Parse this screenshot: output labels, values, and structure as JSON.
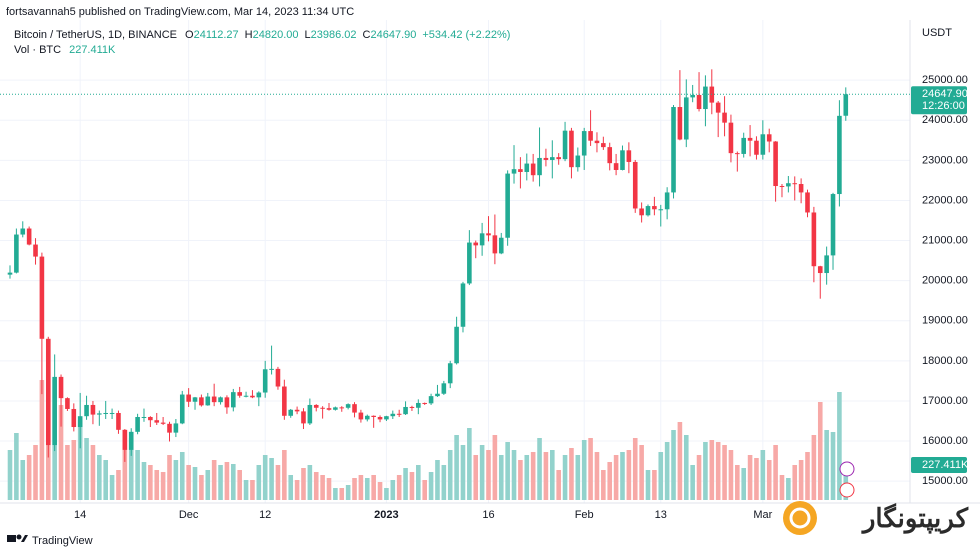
{
  "chart_data": {
    "type": "candlestick",
    "attribution": "fortsavannah5 published on TradingView.com, Mar 14, 2023 11:34 UTC",
    "currency": "USDT",
    "legend_fields": [
      "O",
      "H",
      "L",
      "C"
    ],
    "legend_values": [
      "24112.27",
      "24820.00",
      "23986.02",
      "24647.90"
    ],
    "change": "+534.42 (+2.22%)",
    "countdown": "12:26:00",
    "footer": "TradingView",
    "watermark": "کریپتونگار",
    "up_color": "#22ab94",
    "down_color": "#f23645",
    "volume_up_color": "#92d2cc",
    "volume_down_color": "#f7a9a7",
    "grid": true,
    "ylim": [
      14530,
      26500
    ],
    "yticks": [
      {
        "value": 15000,
        "label": "15000.00"
      },
      {
        "value": 16000,
        "label": "16000.00"
      },
      {
        "value": 17000,
        "label": "17000.00"
      },
      {
        "value": 18000,
        "label": "18000.00"
      },
      {
        "value": 19000,
        "label": "19000.00"
      },
      {
        "value": 20000,
        "label": "20000.00"
      },
      {
        "value": 21000,
        "label": "21000.00"
      },
      {
        "value": 22000,
        "label": "22000.00"
      },
      {
        "value": 23000,
        "label": "23000.00"
      },
      {
        "value": 24000,
        "label": "24000.00"
      },
      {
        "value": 25000,
        "label": "25000.00"
      }
    ],
    "categories": [
      null,
      null,
      null,
      null,
      null,
      null,
      null,
      null,
      null,
      null,
      null,
      "14",
      null,
      null,
      null,
      null,
      null,
      null,
      null,
      null,
      null,
      null,
      null,
      null,
      null,
      null,
      null,
      null,
      "Dec",
      null,
      null,
      null,
      null,
      null,
      null,
      null,
      null,
      null,
      null,
      null,
      "12",
      null,
      null,
      null,
      null,
      null,
      null,
      null,
      null,
      null,
      null,
      null,
      null,
      null,
      null,
      null,
      null,
      null,
      null,
      "2023",
      null,
      null,
      null,
      null,
      null,
      null,
      null,
      null,
      null,
      null,
      null,
      null,
      null,
      null,
      null,
      "16",
      null,
      null,
      null,
      null,
      null,
      null,
      null,
      null,
      null,
      null,
      null,
      null,
      null,
      null,
      "Feb",
      null,
      null,
      null,
      null,
      null,
      null,
      null,
      null,
      null,
      null,
      null,
      "13",
      null,
      null,
      null,
      null,
      null,
      null,
      null,
      null,
      null,
      null,
      null,
      null,
      null,
      null,
      null,
      "Mar",
      null,
      null,
      null,
      null,
      null,
      null,
      null,
      null,
      null,
      null,
      null,
      null,
      null
    ],
    "series": [
      {
        "name": "Bitcoin / TetherUS, 1D, BINANCE",
        "open": [
          20150,
          20200,
          21150,
          21300,
          20900,
          20600,
          18550,
          15900,
          17600,
          17070,
          16800,
          16350,
          16620,
          16900,
          16660,
          16690,
          16700,
          16700,
          16280,
          15780,
          16230,
          16600,
          16600,
          16520,
          16460,
          16430,
          16210,
          16440,
          17160,
          16980,
          17090,
          16890,
          17110,
          16970,
          17090,
          16840,
          17220,
          17130,
          17130,
          17090,
          17210,
          17790,
          17800,
          17360,
          16630,
          16780,
          16740,
          16440,
          16900,
          16830,
          16820,
          16780,
          16840,
          16830,
          16920,
          16710,
          16540,
          16630,
          16600,
          16540,
          16620,
          16680,
          16670,
          16850,
          16830,
          16950,
          16940,
          17120,
          17180,
          17440,
          17940,
          18850,
          19930,
          20950,
          20880,
          21180,
          21130,
          20680,
          21070,
          22670,
          22780,
          22710,
          22920,
          22630,
          23060,
          23010,
          23080,
          23030,
          23740,
          22830,
          23120,
          23730,
          23490,
          23430,
          23330,
          22930,
          22760,
          23250,
          22960,
          21800,
          21630,
          21860,
          21780,
          21780,
          22200,
          24330,
          23520,
          24570,
          24630,
          24280,
          24840,
          24440,
          24190,
          23940,
          23180,
          23160,
          23560,
          23490,
          23140,
          23650,
          23470,
          22360,
          22350,
          22430,
          22410,
          22200,
          21700,
          20360,
          20190,
          20630,
          22160,
          24112.27
        ],
        "high": [
          20380,
          21300,
          21480,
          21350,
          21060,
          20700,
          18600,
          18160,
          17660,
          17090,
          16940,
          17200,
          17130,
          17000,
          16760,
          17000,
          16810,
          16760,
          16300,
          16320,
          16680,
          16810,
          16620,
          16700,
          16600,
          16480,
          16550,
          17250,
          17320,
          17100,
          17160,
          17200,
          17430,
          17110,
          17140,
          17300,
          17350,
          17230,
          17270,
          17240,
          18000,
          18380,
          17850,
          17530,
          16800,
          16860,
          16820,
          17060,
          16920,
          16870,
          16950,
          16860,
          16870,
          16940,
          16970,
          16780,
          16660,
          16640,
          16640,
          16630,
          16760,
          16780,
          16990,
          16880,
          17040,
          16960,
          17180,
          17400,
          17500,
          18000,
          19100,
          19970,
          21260,
          21000,
          21440,
          21610,
          21650,
          21190,
          22750,
          23380,
          23080,
          23170,
          23160,
          23820,
          23290,
          23500,
          23180,
          23960,
          23810,
          23320,
          23810,
          24250,
          23700,
          23590,
          23440,
          23160,
          23370,
          23450,
          23010,
          21950,
          21900,
          22090,
          21890,
          22330,
          24380,
          25250,
          25020,
          24880,
          25200,
          25120,
          25270,
          24480,
          24600,
          24140,
          23220,
          23690,
          23880,
          23600,
          24000,
          23790,
          23480,
          22410,
          22610,
          22600,
          22550,
          22270,
          21840,
          20370,
          20850,
          22190,
          24500,
          24820
        ],
        "low": [
          20050,
          20180,
          21080,
          20880,
          20400,
          17170,
          15590,
          15750,
          16360,
          16750,
          16240,
          15820,
          16530,
          16420,
          16380,
          16550,
          16550,
          16180,
          15480,
          15630,
          16170,
          16480,
          16350,
          16400,
          16400,
          15990,
          16100,
          16420,
          16850,
          16780,
          16860,
          16880,
          16870,
          16910,
          16680,
          16740,
          17080,
          17090,
          17070,
          16870,
          17080,
          17660,
          17280,
          16530,
          16580,
          16670,
          16300,
          16400,
          16740,
          16560,
          16760,
          16760,
          16730,
          16790,
          16590,
          16460,
          16490,
          16330,
          16470,
          16500,
          16550,
          16600,
          16650,
          16750,
          16670,
          16900,
          16900,
          17100,
          17150,
          17320,
          17910,
          18710,
          19890,
          20560,
          20620,
          20980,
          20410,
          20660,
          20870,
          22420,
          22300,
          22500,
          22470,
          22350,
          22850,
          22550,
          22890,
          22980,
          22550,
          22720,
          22760,
          23360,
          23200,
          23260,
          22750,
          22630,
          22750,
          22680,
          21690,
          21450,
          21600,
          21630,
          21350,
          21530,
          22050,
          23500,
          23330,
          24450,
          24220,
          23850,
          24150,
          23580,
          23600,
          22950,
          22720,
          23070,
          23100,
          23020,
          23020,
          23200,
          21970,
          22080,
          22200,
          22000,
          21930,
          21580,
          19960,
          19550,
          19900,
          20270,
          21850,
          23986.02
        ],
        "close": [
          20200,
          21150,
          21300,
          20900,
          20600,
          18550,
          15900,
          17600,
          17070,
          16800,
          16350,
          16620,
          16900,
          16660,
          16690,
          16700,
          16700,
          16280,
          15780,
          16230,
          16600,
          16600,
          16520,
          16460,
          16430,
          16210,
          16440,
          17160,
          16980,
          17090,
          16890,
          17110,
          16970,
          17090,
          16840,
          17220,
          17130,
          17130,
          17090,
          17210,
          17790,
          17800,
          17360,
          16630,
          16780,
          16740,
          16440,
          16900,
          16830,
          16820,
          16780,
          16840,
          16830,
          16920,
          16710,
          16540,
          16630,
          16600,
          16540,
          16620,
          16680,
          16670,
          16850,
          16830,
          16950,
          16940,
          17120,
          17180,
          17440,
          17940,
          18850,
          19930,
          20950,
          20880,
          21180,
          21130,
          20680,
          21070,
          22670,
          22780,
          22710,
          22920,
          22630,
          23060,
          23010,
          23080,
          23030,
          23740,
          22830,
          23120,
          23730,
          23490,
          23430,
          23330,
          22930,
          22760,
          23250,
          22960,
          21800,
          21630,
          21860,
          21780,
          21780,
          22200,
          24330,
          23520,
          24570,
          24630,
          24280,
          24840,
          24440,
          24190,
          23940,
          23180,
          23160,
          23560,
          23490,
          23140,
          23650,
          23470,
          22360,
          22350,
          22430,
          22410,
          22200,
          21700,
          20360,
          20190,
          20630,
          22160,
          24110,
          24647.9
        ]
      }
    ],
    "volume": {
      "name": "Vol · BTC",
      "current_label": "227.411K",
      "values": [
        325000,
        435500,
        260000,
        292500,
        357500,
        780000,
        1040000,
        780000,
        617500,
        357500,
        390000,
        520000,
        403000,
        357500,
        292500,
        260000,
        162500,
        195000,
        455000,
        403000,
        325000,
        247000,
        227500,
        195000,
        182000,
        292500,
        260000,
        312000,
        227500,
        214500,
        162500,
        195000,
        260000,
        227500,
        247000,
        234000,
        195000,
        130000,
        130000,
        227500,
        292500,
        273000,
        227500,
        325000,
        162500,
        130000,
        208000,
        227500,
        182000,
        162500,
        143000,
        78000,
        78000,
        97500,
        143000,
        162500,
        143000,
        162500,
        117000,
        78000,
        130000,
        162500,
        208000,
        182000,
        227500,
        130000,
        182000,
        260000,
        227500,
        325000,
        422500,
        357500,
        468000,
        292500,
        357500,
        325000,
        422500,
        292500,
        377000,
        325000,
        260000,
        292500,
        312000,
        403000,
        312000,
        325000,
        195000,
        292500,
        338000,
        292500,
        390000,
        403000,
        312000,
        195000,
        247000,
        292500,
        312000,
        325000,
        403000,
        357500,
        195000,
        195000,
        312000,
        377000,
        455000,
        507000,
        422500,
        227500,
        292500,
        377000,
        390000,
        377000,
        357500,
        325000,
        227500,
        208000,
        292500,
        273000,
        325000,
        260000,
        357500,
        162500,
        143000,
        227500,
        260000,
        312000,
        422500,
        637000,
        455000,
        442000,
        702000,
        227411
      ]
    }
  }
}
